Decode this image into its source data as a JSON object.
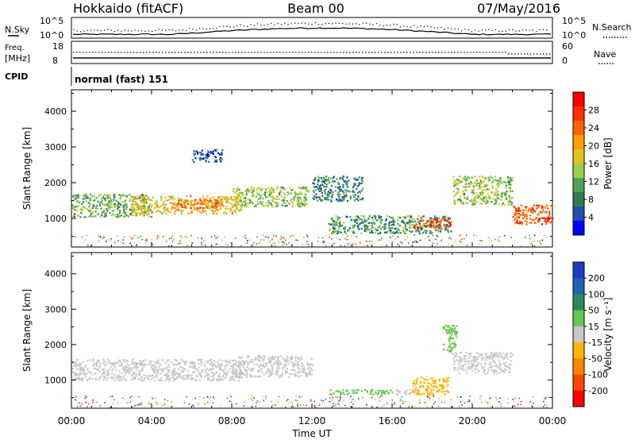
{
  "header": {
    "station": "Hokkaido (fitACF)",
    "beam": "Beam 00",
    "date": "07/May/2016"
  },
  "top_panel": {
    "left_label": "N.Sky",
    "right_label": "N.Search",
    "left_ticks": [
      "10^5",
      "10^0"
    ],
    "right_ticks": [
      "10^5",
      "10^0"
    ]
  },
  "freq_panel": {
    "freq_label": "Freq.",
    "freq_unit": "[MHz]",
    "freq_ticks": [
      "18",
      "8"
    ],
    "nave_label": "Nave",
    "nave_ticks": [
      "60",
      "0"
    ]
  },
  "cpid": {
    "label": "CPID",
    "value": "normal (fast) 151"
  },
  "chart_data": [
    {
      "type": "heatmap",
      "title": "",
      "xlabel": "Time UT",
      "ylabel": "Slant Range [km]",
      "x_ticks": [
        "00:00",
        "04:00",
        "08:00",
        "12:00",
        "16:00",
        "20:00",
        "00:00"
      ],
      "x_range_hours": [
        0,
        24
      ],
      "y_ticks": [
        1000,
        2000,
        3000,
        4000
      ],
      "ylim": [
        200,
        4600
      ],
      "colorbar": {
        "label": "Power [dB]",
        "ticks": [
          "4",
          "8",
          "12",
          "16",
          "20",
          "24",
          "28"
        ],
        "range": [
          0,
          32
        ],
        "colors": [
          "#0000ff",
          "#1d4fb3",
          "#2f7d4e",
          "#4ca35c",
          "#9bd04a",
          "#e0c41c",
          "#ffa000",
          "#ff6400",
          "#ff3000",
          "#ff0000"
        ]
      },
      "regions": [
        {
          "t": [
            0.0,
            4.0
          ],
          "range": [
            1050,
            1700
          ],
          "value": 12
        },
        {
          "t": [
            3.0,
            8.5
          ],
          "range": [
            1150,
            1650
          ],
          "value": 18
        },
        {
          "t": [
            5.0,
            7.5
          ],
          "range": [
            1300,
            1550
          ],
          "value": 24
        },
        {
          "t": [
            8.0,
            11.8
          ],
          "range": [
            1350,
            1900
          ],
          "value": 14
        },
        {
          "t": [
            12.0,
            14.5
          ],
          "range": [
            1500,
            2200
          ],
          "value": 8
        },
        {
          "t": [
            12.8,
            19.0
          ],
          "range": [
            600,
            1100
          ],
          "value": 10
        },
        {
          "t": [
            17.0,
            19.0
          ],
          "range": [
            750,
            1000
          ],
          "value": 26
        },
        {
          "t": [
            6.0,
            7.5
          ],
          "range": [
            2600,
            2950
          ],
          "value": 6
        },
        {
          "t": [
            19.0,
            22.0
          ],
          "range": [
            1400,
            2200
          ],
          "value": 14
        },
        {
          "t": [
            22.0,
            24.0
          ],
          "range": [
            850,
            1400
          ],
          "value": 26
        }
      ]
    },
    {
      "type": "heatmap",
      "title": "",
      "xlabel": "Time UT",
      "ylabel": "Slant Range [km]",
      "x_ticks": [
        "00:00",
        "04:00",
        "08:00",
        "12:00",
        "16:00",
        "20:00",
        "00:00"
      ],
      "x_range_hours": [
        0,
        24
      ],
      "y_ticks": [
        1000,
        2000,
        3000,
        4000
      ],
      "ylim": [
        200,
        4600
      ],
      "colorbar": {
        "label": "Velocity [m s⁻¹]",
        "ticks": [
          "200",
          "100",
          "50",
          "15",
          "-15",
          "-50",
          "-100",
          "-200"
        ],
        "range": [
          -250,
          250
        ],
        "colors": [
          "#1e3cc8",
          "#1e64b4",
          "#2a8a5a",
          "#64c850",
          "#c8c8c8",
          "#ffb400",
          "#ff8200",
          "#ff4600",
          "#ff0000"
        ]
      },
      "regions": [
        {
          "t": [
            0.0,
            8.5
          ],
          "range": [
            1000,
            1600
          ],
          "value": 0
        },
        {
          "t": [
            8.0,
            12.0
          ],
          "range": [
            1100,
            1700
          ],
          "value": 0
        },
        {
          "t": [
            12.8,
            16.0
          ],
          "range": [
            600,
            750
          ],
          "value": 60
        },
        {
          "t": [
            16.0,
            17.0
          ],
          "range": [
            600,
            750
          ],
          "value": 0
        },
        {
          "t": [
            17.0,
            18.8
          ],
          "range": [
            600,
            1100
          ],
          "value": -60
        },
        {
          "t": [
            19.0,
            22.0
          ],
          "range": [
            1200,
            1800
          ],
          "value": 0
        },
        {
          "t": [
            18.5,
            19.2
          ],
          "range": [
            1800,
            2600
          ],
          "value": 40
        }
      ]
    }
  ]
}
